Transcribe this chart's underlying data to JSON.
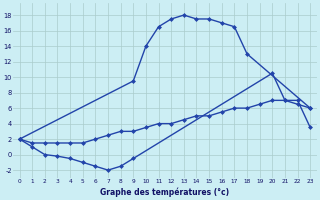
{
  "xlabel": "Graphe des températures (°c)",
  "background_color": "#cceef4",
  "line_color": "#2244aa",
  "grid_color": "#aacccc",
  "xlim": [
    -0.5,
    23.5
  ],
  "ylim": [
    -3.0,
    19.5
  ],
  "xticks": [
    0,
    1,
    2,
    3,
    4,
    5,
    6,
    7,
    8,
    9,
    10,
    11,
    12,
    13,
    14,
    15,
    16,
    17,
    18,
    19,
    20,
    21,
    22,
    23
  ],
  "yticks": [
    -2,
    0,
    2,
    4,
    6,
    8,
    10,
    12,
    14,
    16,
    18
  ],
  "line1_x": [
    0,
    9,
    10,
    11,
    12,
    13,
    14,
    15,
    16,
    17,
    18,
    23
  ],
  "line1_y": [
    2,
    9.5,
    14,
    16.5,
    17.5,
    18,
    17.5,
    17.5,
    17,
    16.5,
    13,
    6
  ],
  "line2_x": [
    0,
    1,
    2,
    3,
    4,
    5,
    6,
    7,
    8,
    9,
    10,
    11,
    12,
    13,
    14,
    15,
    16,
    17,
    18,
    19,
    20,
    21,
    22,
    23
  ],
  "line2_y": [
    2,
    1.5,
    1.5,
    1.5,
    1.5,
    1.5,
    2.0,
    2.5,
    3.0,
    3.0,
    3.5,
    4.0,
    4.0,
    4.5,
    5.0,
    5.0,
    5.5,
    6.0,
    6.0,
    6.5,
    7.0,
    7.0,
    7.0,
    3.5
  ],
  "line3_x": [
    0,
    1,
    2,
    3,
    4,
    5,
    6,
    7,
    8,
    9,
    20,
    21,
    22,
    23
  ],
  "line3_y": [
    2,
    1.0,
    0.0,
    -0.2,
    -0.5,
    -1.0,
    -1.5,
    -2.0,
    -1.5,
    -0.5,
    10.5,
    7.0,
    6.5,
    6.0
  ]
}
